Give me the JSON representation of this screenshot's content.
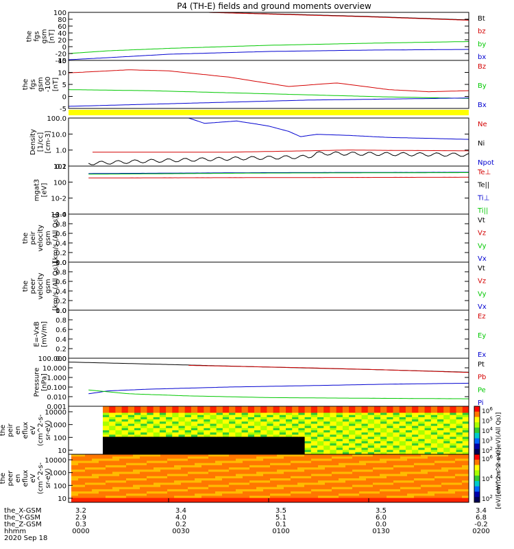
{
  "title": "P4 (TH-E) fields and ground moments overview",
  "colors": {
    "black": "#000000",
    "red": "#d40000",
    "green": "#00c800",
    "blue": "#0000d0",
    "yellow": "#ffff00"
  },
  "chart_data": [
    {
      "type": "line",
      "ylabel": [
        "the",
        "fgs",
        "gsm",
        "[nT]"
      ],
      "yticks": [
        "100",
        "80",
        "60",
        "40",
        "20",
        "0",
        "-20",
        "-40"
      ],
      "ylim": [
        -40,
        100
      ],
      "legend": [
        {
          "name": "Bt",
          "color": "black"
        },
        {
          "name": "bz",
          "color": "red"
        },
        {
          "name": "by",
          "color": "green"
        },
        {
          "name": "bx",
          "color": "blue"
        }
      ],
      "series": [
        {
          "name": "Bt",
          "color": "black",
          "x": [
            0.35,
            0.5,
            0.75,
            1.0
          ],
          "y": [
            100,
            96,
            88,
            78
          ]
        },
        {
          "name": "bz",
          "color": "red",
          "x": [
            0.35,
            0.5,
            0.75,
            1.0
          ],
          "y": [
            100,
            95,
            87,
            77
          ]
        },
        {
          "name": "by",
          "color": "green",
          "x": [
            0,
            0.1,
            0.25,
            0.5,
            0.75,
            1.0
          ],
          "y": [
            -20,
            -12,
            -5,
            4,
            10,
            15
          ]
        },
        {
          "name": "bx",
          "color": "blue",
          "x": [
            0,
            0.1,
            0.25,
            0.5,
            0.75,
            1.0
          ],
          "y": [
            -38,
            -32,
            -22,
            -14,
            -10,
            -8
          ]
        }
      ]
    },
    {
      "type": "line",
      "ylabel": [
        "the",
        "fgs",
        "gsm",
        "-100",
        "[nT]"
      ],
      "yticks": [
        "15",
        "10",
        "5",
        "0",
        "-5"
      ],
      "ylim": [
        -7,
        16
      ],
      "legend": [
        {
          "name": "Bz",
          "color": "red"
        },
        {
          "name": "By",
          "color": "green"
        },
        {
          "name": "Bx",
          "color": "blue"
        }
      ],
      "series": [
        {
          "name": "Bz",
          "color": "red",
          "x": [
            0,
            0.15,
            0.25,
            0.4,
            0.55,
            0.62,
            0.67,
            0.72,
            0.8,
            0.9,
            1.0
          ],
          "y": [
            10,
            11.5,
            11,
            8,
            3.5,
            4.5,
            5.2,
            4,
            2,
            1,
            1.5
          ]
        },
        {
          "name": "By",
          "color": "green",
          "x": [
            0,
            0.2,
            0.4,
            0.6,
            0.8,
            1.0
          ],
          "y": [
            2,
            1.5,
            0.5,
            -0.5,
            -1.5,
            -2.2
          ]
        },
        {
          "name": "Bx",
          "color": "blue",
          "x": [
            0,
            0.2,
            0.4,
            0.6,
            0.8,
            1.0
          ],
          "y": [
            -6,
            -5,
            -4,
            -3,
            -2.5,
            -2
          ]
        }
      ]
    },
    {
      "type": "line",
      "log": true,
      "ylabel": [
        "Density",
        "[1/cc]",
        "[cm-3]"
      ],
      "yticks": [
        "100.0",
        "10.0",
        "1.0",
        "0.1"
      ],
      "ylim": [
        0.05,
        200
      ],
      "legend": [
        {
          "name": "Ne",
          "color": "red"
        },
        {
          "name": "Ni",
          "color": "black"
        },
        {
          "name": "Npot",
          "color": "blue"
        }
      ],
      "series": [
        {
          "name": "Npot",
          "color": "blue",
          "x": [
            0.3,
            0.34,
            0.42,
            0.47,
            0.5,
            0.55,
            0.58,
            0.62,
            0.7,
            0.8,
            0.9,
            1.0
          ],
          "y": [
            200,
            80,
            120,
            70,
            50,
            20,
            8,
            12,
            10,
            7,
            6,
            5
          ]
        },
        {
          "name": "Ne",
          "color": "red",
          "x": [
            0.06,
            0.4,
            0.6,
            0.7,
            0.8,
            1.0
          ],
          "y": [
            0.55,
            0.55,
            0.7,
            0.8,
            0.75,
            0.7
          ]
        },
        {
          "name": "Ni",
          "color": "black",
          "x": [
            0.05,
            0.2,
            0.4,
            0.6,
            0.62,
            0.8,
            1.0
          ],
          "y": [
            0.08,
            0.12,
            0.18,
            0.25,
            0.45,
            0.4,
            0.35
          ]
        }
      ]
    },
    {
      "type": "line",
      "log": true,
      "ylabel": [
        "mgat3",
        "[eV]"
      ],
      "yticks": [
        "10^2",
        "10^0",
        "10^-2",
        "10^-4"
      ],
      "ylim": [
        1e-05,
        10000
      ],
      "legend": [
        {
          "name": "Te⊥",
          "color": "red"
        },
        {
          "name": "Te||",
          "color": "black"
        },
        {
          "name": "Ti⊥",
          "color": "blue"
        },
        {
          "name": "Ti||",
          "color": "green"
        }
      ],
      "series": [
        {
          "name": "Ti⊥",
          "color": "blue",
          "x": [
            0.05,
            0.5,
            1.0
          ],
          "y": [
            400,
            600,
            700
          ]
        },
        {
          "name": "Ti||",
          "color": "green",
          "x": [
            0.05,
            0.5,
            1.0
          ],
          "y": [
            300,
            500,
            600
          ]
        },
        {
          "name": "Te⊥",
          "color": "red",
          "x": [
            0.05,
            0.5,
            1.0
          ],
          "y": [
            60,
            70,
            80
          ]
        }
      ]
    },
    {
      "type": "line",
      "ylabel": [
        "the",
        "peir",
        "velocity",
        "gsm",
        "[km/s (All Qs)]"
      ],
      "yticks": [
        "1.0",
        "0.8",
        "0.6",
        "0.4",
        "0.2",
        "0.0"
      ],
      "ylim": [
        0,
        1
      ],
      "legend": [
        {
          "name": "Vt",
          "color": "black"
        },
        {
          "name": "Vz",
          "color": "red"
        },
        {
          "name": "Vy",
          "color": "green"
        },
        {
          "name": "Vx",
          "color": "blue"
        }
      ],
      "series": []
    },
    {
      "type": "line",
      "ylabel": [
        "the",
        "peer",
        "velocity",
        "gsm",
        "[km/s (All Qs)]"
      ],
      "yticks": [
        "1.0",
        "0.8",
        "0.6",
        "0.4",
        "0.2",
        "0.0"
      ],
      "ylim": [
        0,
        1
      ],
      "legend": [
        {
          "name": "Vt",
          "color": "black"
        },
        {
          "name": "Vz",
          "color": "red"
        },
        {
          "name": "Vy",
          "color": "green"
        },
        {
          "name": "Vx",
          "color": "blue"
        }
      ],
      "series": []
    },
    {
      "type": "line",
      "ylabel": [
        "E=-VxB",
        "[mV/m]"
      ],
      "yticks": [
        "1.0",
        "0.8",
        "0.6",
        "0.4",
        "0.2",
        "0.0"
      ],
      "ylim": [
        0,
        1
      ],
      "legend": [
        {
          "name": "Ez",
          "color": "red"
        },
        {
          "name": "Ey",
          "color": "green"
        },
        {
          "name": "Ex",
          "color": "blue"
        }
      ],
      "series": []
    },
    {
      "type": "line",
      "log": true,
      "ylabel": [
        "Pressure",
        "[nPa]"
      ],
      "yticks": [
        "100.000",
        "10.000",
        "1.000",
        "0.100",
        "0.010",
        "0.001"
      ],
      "ylim": [
        0.001,
        100
      ],
      "legend": [
        {
          "name": "Pt",
          "color": "black"
        },
        {
          "name": "Pb",
          "color": "red"
        },
        {
          "name": "Pe",
          "color": "green"
        },
        {
          "name": "Pi",
          "color": "blue"
        }
      ],
      "series": [
        {
          "name": "Pt",
          "color": "black",
          "x": [
            0,
            0.2,
            0.5,
            0.8,
            1.0
          ],
          "y": [
            40,
            25,
            12,
            6,
            3.5
          ]
        },
        {
          "name": "Pb",
          "color": "red",
          "x": [
            0.3,
            0.6,
            0.8,
            1.0
          ],
          "y": [
            18,
            10,
            6,
            3.3
          ]
        },
        {
          "name": "Pi",
          "color": "blue",
          "x": [
            0.05,
            0.1,
            0.2,
            0.4,
            0.6,
            0.8,
            1.0
          ],
          "y": [
            0.02,
            0.04,
            0.06,
            0.1,
            0.14,
            0.2,
            0.25
          ]
        },
        {
          "name": "Pe",
          "color": "green",
          "x": [
            0.05,
            0.15,
            0.3,
            0.5,
            0.7,
            1.0
          ],
          "y": [
            0.05,
            0.02,
            0.012,
            0.008,
            0.007,
            0.006
          ]
        }
      ]
    },
    {
      "type": "heatmap",
      "ylabel": [
        "the",
        "peir",
        "en",
        "eflux",
        "eV",
        "(cm^2-s-",
        "sr-eV)"
      ],
      "yticks": [
        "10000",
        "1000",
        "100",
        "10"
      ],
      "colorbar_label": "[eV/(cm^2-s-sr-eV)(All Qs)]",
      "colorbar_ticks": [
        "10^6",
        "10^5",
        "10^4",
        "10^3",
        "10^2"
      ]
    },
    {
      "type": "heatmap",
      "ylabel": [
        "the",
        "peer",
        "en",
        "eflux",
        "eV",
        "(cm^2-s-",
        "sr-eV)"
      ],
      "yticks": [
        "10000",
        "1000",
        "100",
        "10"
      ],
      "colorbar_label": "[eV/(cm^2-s-sr-eV)]",
      "colorbar_ticks": [
        "10^6",
        "10^4",
        "10^2"
      ]
    }
  ],
  "xaxis": {
    "rows": [
      {
        "label": "the_X-GSM",
        "values": [
          "3.2",
          "3.4",
          "3.5",
          "3.5",
          "3.4"
        ]
      },
      {
        "label": "the_Y-GSM",
        "values": [
          "2.9",
          "4.0",
          "5.1",
          "6.0",
          "6.8"
        ]
      },
      {
        "label": "the_Z-GSM",
        "values": [
          "0.3",
          "0.2",
          "0.1",
          "0.0",
          "-0.2"
        ]
      },
      {
        "label": "hhmm",
        "values": [
          "0000",
          "0030",
          "0100",
          "0130",
          "0200"
        ]
      }
    ],
    "date": "2020 Sep 18"
  }
}
